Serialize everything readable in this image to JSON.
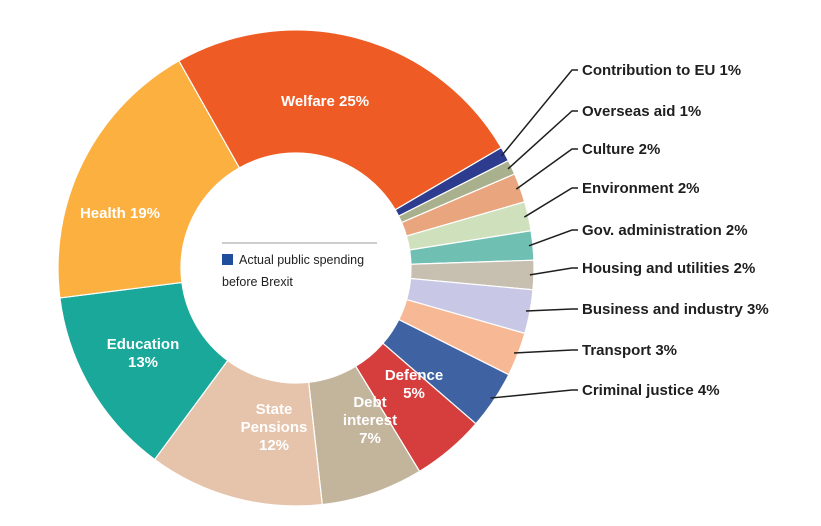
{
  "chart_data": {
    "type": "pie",
    "legend": {
      "label_line1": "Actual public spending",
      "label_line2": "before Brexit",
      "color": "#1f4e9c"
    },
    "slices": [
      {
        "label": "Welfare 25%",
        "value": 25,
        "color": "#ef5b24"
      },
      {
        "label": "Contribution to EU 1%",
        "value": 1,
        "color": "#2e3c8f"
      },
      {
        "label": "Overseas aid 1%",
        "value": 1,
        "color": "#a8b08e"
      },
      {
        "label": "Culture 2%",
        "value": 2,
        "color": "#e9a57d"
      },
      {
        "label": "Environment 2%",
        "value": 2,
        "color": "#cfe0bd"
      },
      {
        "label": "Gov. administration 2%",
        "value": 2,
        "color": "#6fbfb2"
      },
      {
        "label": "Housing and utilities 2%",
        "value": 2,
        "color": "#c7bfaf"
      },
      {
        "label": "Business and industry 3%",
        "value": 3,
        "color": "#c8c8e6"
      },
      {
        "label": "Transport 3%",
        "value": 3,
        "color": "#f7b896"
      },
      {
        "label": "Criminal justice 4%",
        "value": 4,
        "color": "#3f63a2"
      },
      {
        "label": "Defence 5%",
        "value": 5,
        "color": "#d63e3e"
      },
      {
        "label": "Debt interest 7%",
        "value": 7,
        "color": "#c3b59c"
      },
      {
        "label": "State Pensions 12%",
        "value": 12,
        "color": "#e6c4ac"
      },
      {
        "label": "Education 13%",
        "value": 13,
        "color": "#19a89a"
      },
      {
        "label": "Health 19%",
        "value": 19,
        "color": "#fbb040"
      }
    ]
  }
}
